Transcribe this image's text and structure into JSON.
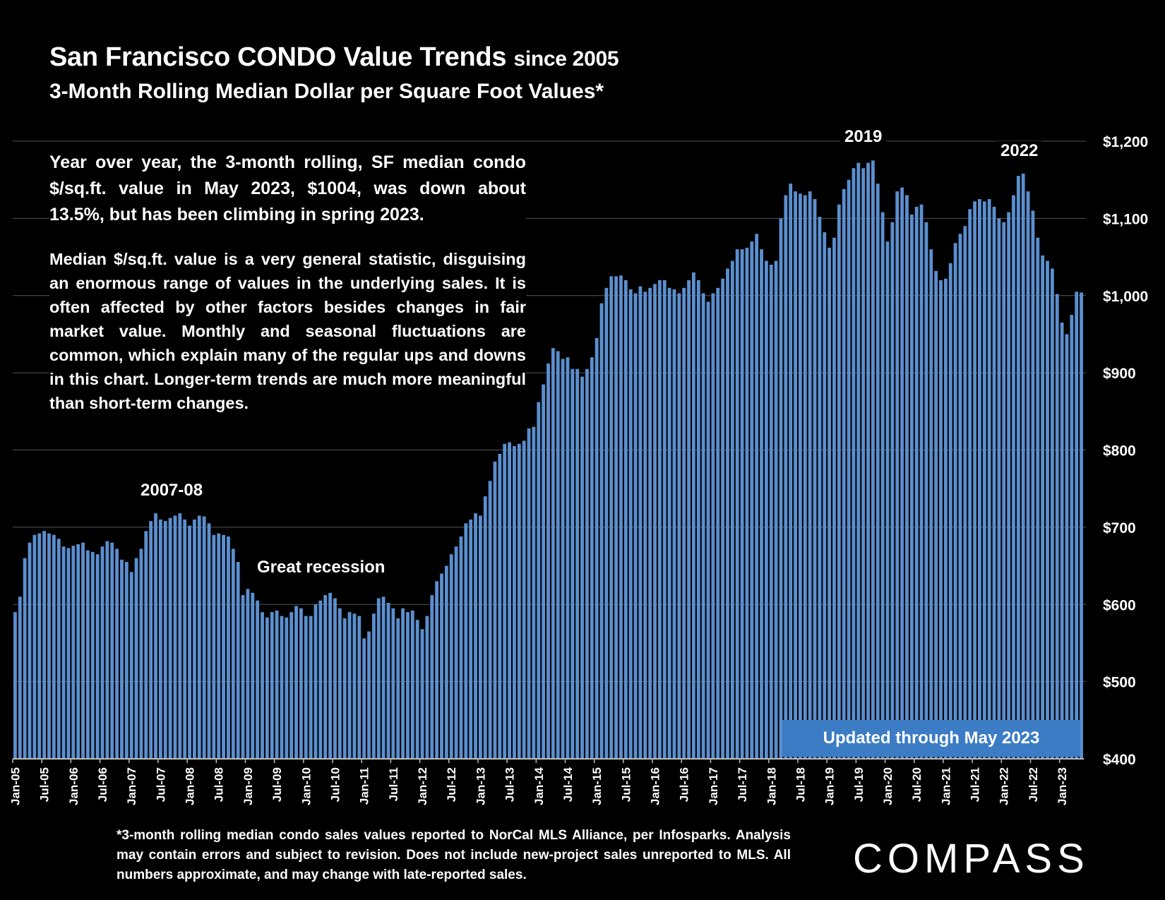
{
  "header": {
    "title_main": "San Francisco CONDO Value Trends",
    "title_since": "since 2005",
    "subtitle": "3-Month Rolling Median Dollar per Square Foot Values*"
  },
  "text": {
    "para1": "Year over year, the 3-month rolling, SF median condo $/sq.ft. value in May 2023, $1004, was down about 13.5%, but has been climbing in spring 2023.",
    "para2": "Median $/sq.ft. value is a very general statistic, disguising an enormous range of values in the underlying sales. It is often affected by other factors besides changes in fair market value. Monthly and seasonal fluctuations are common, which explain many of the regular ups and downs in this chart. Longer-term trends are much more meaningful than short-term changes.",
    "updated": "Updated through May 2023",
    "footnote": "*3-month rolling median condo sales values reported to NorCal MLS Alliance, per Infosparks. Analysis may contain errors and subject to revision. Does not include new-project sales unreported to MLS. All numbers approximate, and may change with late-reported sales.",
    "logo": "COMPASS"
  },
  "colors": {
    "bar": "#5b8fcf",
    "grid": "#555555",
    "badge": "#3b7cc4"
  },
  "chart_data": {
    "type": "bar",
    "title": "San Francisco CONDO Value Trends since 2005",
    "subtitle": "3-Month Rolling Median Dollar per Square Foot Values*",
    "ylim": [
      400,
      1200
    ],
    "yticks": [
      "$1,200",
      "$1,100",
      "$1,000",
      "$900",
      "$800",
      "$700",
      "$600",
      "$500",
      "$400"
    ],
    "xticks": [
      "Jan-05",
      "Jul-05",
      "Jan-06",
      "Jul-06",
      "Jan-07",
      "Jul-07",
      "Jan-08",
      "Jul-08",
      "Jan-09",
      "Jul-09",
      "Jan-10",
      "Jul-10",
      "Jan-11",
      "Jul-11",
      "Jan-12",
      "Jul-12",
      "Jan-13",
      "Jul-13",
      "Jan-14",
      "Jul-14",
      "Jan-15",
      "Jul-15",
      "Jan-16",
      "Jul-16",
      "Jan-17",
      "Jul-17",
      "Jan-18",
      "Jul-18",
      "Jan-19",
      "Jul-19",
      "Jan-20",
      "Jul-20",
      "Jan-21",
      "Jul-21",
      "Jan-22",
      "Jul-22",
      "Jan-23"
    ],
    "series": [
      {
        "name": "3-month rolling median $/sq.ft.",
        "values": [
          590,
          610,
          660,
          680,
          690,
          692,
          695,
          692,
          690,
          685,
          675,
          673,
          676,
          678,
          680,
          670,
          668,
          665,
          675,
          682,
          680,
          672,
          658,
          655,
          642,
          660,
          672,
          695,
          708,
          718,
          710,
          708,
          712,
          715,
          718,
          710,
          702,
          710,
          715,
          714,
          705,
          690,
          692,
          690,
          688,
          672,
          655,
          612,
          620,
          615,
          605,
          590,
          583,
          590,
          592,
          585,
          583,
          590,
          598,
          595,
          585,
          585,
          600,
          605,
          612,
          615,
          608,
          595,
          582,
          590,
          588,
          585,
          556,
          565,
          588,
          608,
          610,
          602,
          595,
          582,
          595,
          590,
          592,
          580,
          568,
          585,
          612,
          630,
          640,
          650,
          665,
          675,
          688,
          705,
          710,
          718,
          715,
          740,
          760,
          785,
          795,
          808,
          810,
          805,
          808,
          812,
          828,
          830,
          862,
          885,
          912,
          932,
          928,
          918,
          920,
          905,
          905,
          895,
          905,
          920,
          945,
          990,
          1010,
          1025,
          1025,
          1026,
          1020,
          1008,
          1003,
          1012,
          1005,
          1010,
          1015,
          1020,
          1020,
          1010,
          1008,
          1003,
          1010,
          1020,
          1030,
          1020,
          1003,
          992,
          1003,
          1010,
          1022,
          1035,
          1045,
          1060,
          1060,
          1062,
          1070,
          1080,
          1060,
          1045,
          1040,
          1045,
          1100,
          1130,
          1145,
          1135,
          1132,
          1130,
          1135,
          1125,
          1102,
          1082,
          1062,
          1075,
          1118,
          1138,
          1150,
          1165,
          1172,
          1165,
          1172,
          1175,
          1145,
          1108,
          1070,
          1095,
          1135,
          1140,
          1130,
          1105,
          1115,
          1118,
          1095,
          1060,
          1032,
          1020,
          1022,
          1042,
          1068,
          1080,
          1090,
          1112,
          1122,
          1125,
          1122,
          1125,
          1115,
          1100,
          1095,
          1108,
          1130,
          1155,
          1158,
          1135,
          1110,
          1075,
          1052,
          1045,
          1035,
          1002,
          965,
          950,
          975,
          1005,
          1004
        ]
      }
    ],
    "annotations": [
      {
        "id": "peak_2007",
        "text": "2007-08"
      },
      {
        "id": "recession",
        "text": "Great recession"
      },
      {
        "id": "peak_2019",
        "text": "2019"
      },
      {
        "id": "peak_2022",
        "text": "2022"
      }
    ]
  }
}
